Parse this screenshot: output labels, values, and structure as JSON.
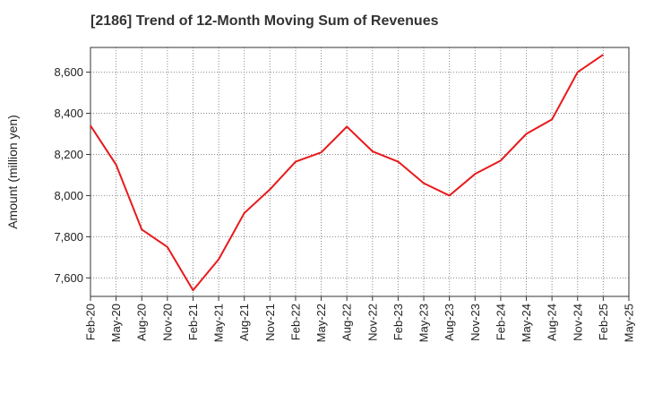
{
  "chart_data": {
    "type": "line",
    "title": "[2186]  Trend of 12-Month Moving Sum of Revenues",
    "ylabel": "Amount (million yen)",
    "xlabel": "",
    "x_ticks": [
      "Feb-20",
      "May-20",
      "Aug-20",
      "Nov-20",
      "Feb-21",
      "May-21",
      "Aug-21",
      "Nov-21",
      "Feb-22",
      "May-22",
      "Aug-22",
      "Nov-22",
      "Feb-23",
      "May-23",
      "Aug-23",
      "Nov-23",
      "Feb-24",
      "May-24",
      "Aug-24",
      "Nov-24",
      "Feb-25",
      "May-25"
    ],
    "y_ticks": [
      7600,
      7800,
      8000,
      8200,
      8400,
      8600
    ],
    "y_tick_labels": [
      "7,600",
      "7,800",
      "8,000",
      "8,200",
      "8,400",
      "8,600"
    ],
    "ylim": [
      7510,
      8720
    ],
    "grid": true,
    "series": [
      {
        "color": "#e8191b",
        "x": [
          "Feb-20",
          "May-20",
          "Aug-20",
          "Nov-20",
          "Feb-21",
          "May-21",
          "Aug-21",
          "Nov-21",
          "Feb-22",
          "May-22",
          "Aug-22",
          "Nov-22",
          "Feb-23",
          "May-23",
          "Aug-23",
          "Nov-23",
          "Feb-24",
          "May-24",
          "Aug-24",
          "Nov-24",
          "Feb-25"
        ],
        "values": [
          8340,
          8150,
          7835,
          7750,
          7540,
          7690,
          7915,
          8030,
          8165,
          8210,
          8335,
          8215,
          8165,
          8060,
          8000,
          8105,
          8170,
          8300,
          8370,
          8600,
          8685
        ]
      }
    ]
  }
}
